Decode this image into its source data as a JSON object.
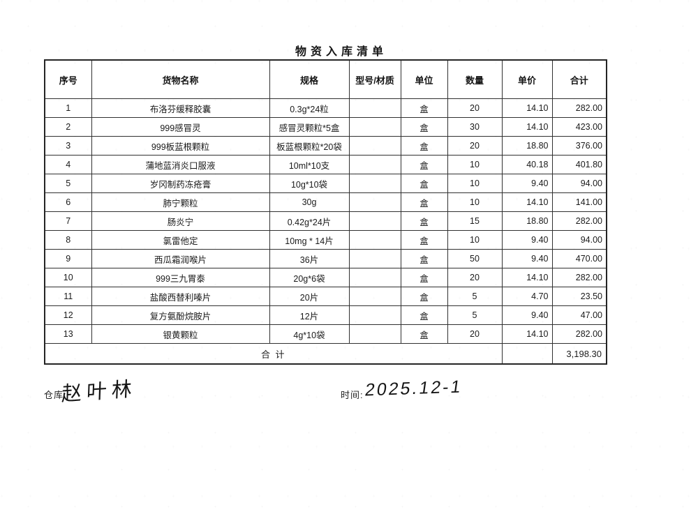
{
  "title": "物资入库清单",
  "table": {
    "headers": [
      "序号",
      "货物名称",
      "规格",
      "型号/材质",
      "单位",
      "数量",
      "单价",
      "合计"
    ],
    "rows": [
      [
        "1",
        "布洛芬缓释胶囊",
        "0.3g*24粒",
        "",
        "盒",
        "20",
        "14.10",
        "282.00"
      ],
      [
        "2",
        "999感冒灵",
        "感冒灵颗粒*5盒",
        "",
        "盒",
        "30",
        "14.10",
        "423.00"
      ],
      [
        "3",
        "999板蓝根颗粒",
        "板蓝根颗粒*20袋",
        "",
        "盒",
        "20",
        "18.80",
        "376.00"
      ],
      [
        "4",
        "蒲地蓝消炎口服液",
        "10ml*10支",
        "",
        "盒",
        "10",
        "40.18",
        "401.80"
      ],
      [
        "5",
        "岁冈制药冻疮膏",
        "10g*10袋",
        "",
        "盒",
        "10",
        "9.40",
        "94.00"
      ],
      [
        "6",
        "肺宁颗粒",
        "30g",
        "",
        "盒",
        "10",
        "14.10",
        "141.00"
      ],
      [
        "7",
        "肠炎宁",
        "0.42g*24片",
        "",
        "盒",
        "15",
        "18.80",
        "282.00"
      ],
      [
        "8",
        "氯雷他定",
        "10mg * 14片",
        "",
        "盒",
        "10",
        "9.40",
        "94.00"
      ],
      [
        "9",
        "西瓜霜润喉片",
        "36片",
        "",
        "盒",
        "50",
        "9.40",
        "470.00"
      ],
      [
        "10",
        "999三九胃泰",
        "20g*6袋",
        "",
        "盒",
        "20",
        "14.10",
        "282.00"
      ],
      [
        "11",
        "盐酸西替利嗪片",
        "20片",
        "",
        "盒",
        "5",
        "4.70",
        "23.50"
      ],
      [
        "12",
        "复方氨酚烷胺片",
        "12片",
        "",
        "盒",
        "5",
        "9.40",
        "47.00"
      ],
      [
        "13",
        "银黄颗粒",
        "4g*10袋",
        "",
        "盒",
        "20",
        "14.10",
        "282.00"
      ]
    ],
    "total_label": "合      计",
    "total_value": "3,198.30"
  },
  "footer": {
    "warehouse_label": "仓库:",
    "warehouse_signature": "赵叶林",
    "time_label": "时间:",
    "time_value": "2025.12-1"
  }
}
